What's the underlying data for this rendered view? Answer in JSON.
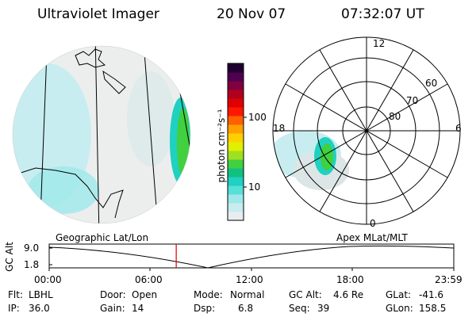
{
  "header": {
    "title": "Ultraviolet Imager",
    "date": "20 Nov 07",
    "time": "07:32:07 UT"
  },
  "colorbar": {
    "unit_label": "photon cm⁻²s⁻¹",
    "ticks": [
      "100",
      "10"
    ],
    "colors": [
      "#e8eef0",
      "#c8ecef",
      "#9ee8ea",
      "#55e0d8",
      "#20d0c0",
      "#10c080",
      "#40d040",
      "#a0e020",
      "#e0f000",
      "#ffd000",
      "#ffa000",
      "#ff6000",
      "#ff1800",
      "#e00000",
      "#b00020",
      "#800040",
      "#500050",
      "#200030"
    ]
  },
  "left_map": {
    "label": "Geographic Lat/Lon"
  },
  "right_map": {
    "label": "Apex MLat/MLT",
    "mlt_labels": [
      "12",
      "18",
      "6",
      "0"
    ],
    "lat_labels": [
      "60",
      "70",
      "80"
    ]
  },
  "altitude_plot": {
    "ylabel": "GC Alt",
    "yticks": [
      "9.0",
      "1.8"
    ],
    "xticks": [
      "00:00",
      "06:00",
      "12:00",
      "18:00",
      "23:59"
    ],
    "marker_time": "07:32",
    "marker_fraction": 0.314,
    "marker_color": "#dd0000"
  },
  "info": {
    "flt_label": "Flt:",
    "flt_value": "LBHL",
    "ip_label": "IP:",
    "ip_value": "36.0",
    "door_label": "Door:",
    "door_value": "Open",
    "gain_label": "Gain:",
    "gain_value": "14",
    "mode_label": "Mode:",
    "mode_value": "Normal",
    "dsp_label": "Dsp:",
    "dsp_value": "6.8",
    "gcalt_label": "GC Alt:",
    "gcalt_value": "4.6 Re",
    "seq_label": "Seq:",
    "seq_value": "39",
    "glat_label": "GLat:",
    "glat_value": "-41.6",
    "glon_label": "GLon:",
    "glon_value": "158.5"
  }
}
